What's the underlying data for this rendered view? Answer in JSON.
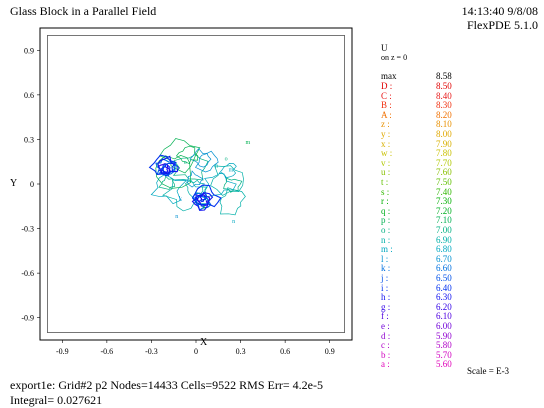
{
  "header": {
    "title": "Glass Block in a Parallel Field",
    "timestamp": "14:13:40 9/8/08",
    "version": "FlexPDE 5.1.0"
  },
  "legend": {
    "variable": "U",
    "subtitle": "on z = 0",
    "max_label": "max",
    "max_value": "8.58",
    "min_value": "5.60",
    "scale_note": "Scale = E-3",
    "items": [
      {
        "key": "D",
        "value": "8.50",
        "color": "#e00000"
      },
      {
        "key": "C",
        "value": "8.40",
        "color": "#e81818"
      },
      {
        "key": "B",
        "value": "8.30",
        "color": "#f03010"
      },
      {
        "key": "A",
        "value": "8.20",
        "color": "#f07000"
      },
      {
        "key": "z",
        "value": "8.10",
        "color": "#e89000"
      },
      {
        "key": "y",
        "value": "8.00",
        "color": "#e0a800"
      },
      {
        "key": "x",
        "value": "7.90",
        "color": "#d8b000"
      },
      {
        "key": "w",
        "value": "7.80",
        "color": "#c8c000"
      },
      {
        "key": "v",
        "value": "7.70",
        "color": "#b0c800"
      },
      {
        "key": "u",
        "value": "7.60",
        "color": "#88c000"
      },
      {
        "key": "t",
        "value": "7.50",
        "color": "#60c000"
      },
      {
        "key": "s",
        "value": "7.40",
        "color": "#30b800"
      },
      {
        "key": "r",
        "value": "7.30",
        "color": "#00b000"
      },
      {
        "key": "q",
        "value": "7.20",
        "color": "#00b020"
      },
      {
        "key": "p",
        "value": "7.10",
        "color": "#00b050"
      },
      {
        "key": "o",
        "value": "7.00",
        "color": "#00b080"
      },
      {
        "key": "n",
        "value": "6.90",
        "color": "#00b0a8"
      },
      {
        "key": "m",
        "value": "6.80",
        "color": "#00a8c0"
      },
      {
        "key": "l",
        "value": "6.70",
        "color": "#0090d0"
      },
      {
        "key": "k",
        "value": "6.60",
        "color": "#0070e0"
      },
      {
        "key": "j",
        "value": "6.50",
        "color": "#0050e8"
      },
      {
        "key": "i",
        "value": "6.40",
        "color": "#0030f0"
      },
      {
        "key": "h",
        "value": "6.30",
        "color": "#1010f0"
      },
      {
        "key": "g",
        "value": "6.20",
        "color": "#3000e8"
      },
      {
        "key": "f",
        "value": "6.10",
        "color": "#5000e0"
      },
      {
        "key": "e",
        "value": "6.00",
        "color": "#7000d8"
      },
      {
        "key": "d",
        "value": "5.90",
        "color": "#9000d0"
      },
      {
        "key": "c",
        "value": "5.80",
        "color": "#b000c8"
      },
      {
        "key": "b",
        "value": "5.70",
        "color": "#d000c0"
      },
      {
        "key": "a",
        "value": "5.60",
        "color": "#e000b8"
      }
    ]
  },
  "footer": {
    "stats": "export1e:  Grid#2  p2  Nodes=14433 Cells=9522 RMS Err= 4.2e-5",
    "integral": "Integral=  0.027621"
  },
  "chart_data": {
    "type": "contour",
    "xlabel": "X",
    "ylabel": "Y",
    "xlim": [
      -1.05,
      1.05
    ],
    "ylim": [
      -1.05,
      1.05
    ],
    "xticks": [
      -0.9,
      -0.6,
      -0.3,
      0,
      0.3,
      0.6,
      0.9
    ],
    "yticks": [
      0.9,
      0.6,
      0.3,
      0,
      -0.3,
      -0.6,
      -0.9
    ],
    "block_xlim": [
      -1,
      1
    ],
    "block_ylim": [
      -1,
      1
    ],
    "hotspots": [
      {
        "x": -0.2,
        "y": 0.1,
        "level": "low"
      },
      {
        "x": 0.05,
        "y": -0.1,
        "level": "low"
      }
    ]
  }
}
